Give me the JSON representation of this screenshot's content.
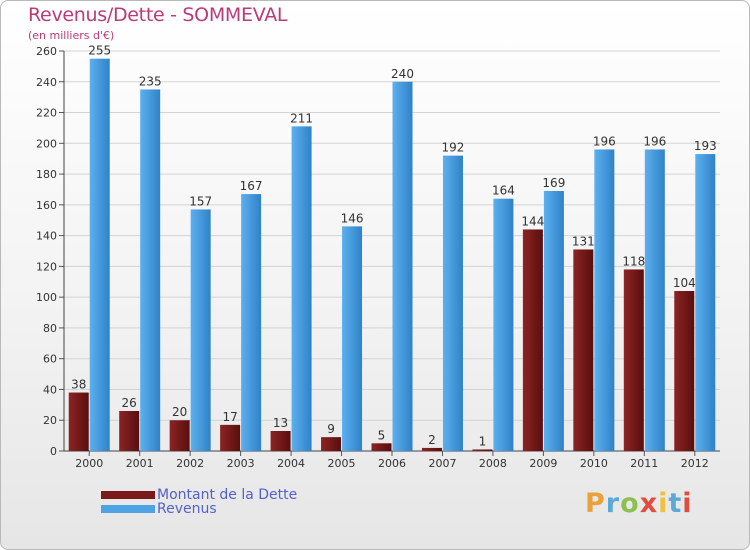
{
  "header": {
    "title": "Revenus/Dette - SOMMEVAL",
    "subtitle": "(en milliers d'€)"
  },
  "chart_data": {
    "type": "bar",
    "categories": [
      "2000",
      "2001",
      "2002",
      "2003",
      "2004",
      "2005",
      "2006",
      "2007",
      "2008",
      "2009",
      "2010",
      "2011",
      "2012"
    ],
    "series": [
      {
        "name": "Montant de la Dette",
        "values": [
          38,
          26,
          20,
          17,
          13,
          9,
          5,
          2,
          1,
          144,
          131,
          118,
          104
        ],
        "color": "#7a1a1a"
      },
      {
        "name": "Revenus",
        "values": [
          255,
          235,
          157,
          167,
          211,
          146,
          240,
          192,
          164,
          169,
          196,
          196,
          193
        ],
        "color": "#4ea3e4"
      }
    ],
    "ylim": [
      0,
      260
    ],
    "yticks": [
      0,
      20,
      40,
      60,
      80,
      100,
      120,
      140,
      160,
      180,
      200,
      220,
      240,
      260
    ],
    "grid": true,
    "legend": "bottom-left",
    "title": "Revenus/Dette - SOMMEVAL",
    "xlabel": "",
    "ylabel": "(en milliers d'€)"
  },
  "legend": {
    "items": [
      {
        "label": "Montant de la Dette",
        "color": "#7a1a1a"
      },
      {
        "label": "Revenus",
        "color": "#4ea3e4"
      }
    ]
  },
  "logo": {
    "text": "Proxiti",
    "letter_colors": [
      "#e9a13b",
      "#5aa9d8",
      "#8cc152",
      "#e24c3c",
      "#f2c13c",
      "#5aa9d8",
      "#e24c3c"
    ]
  }
}
